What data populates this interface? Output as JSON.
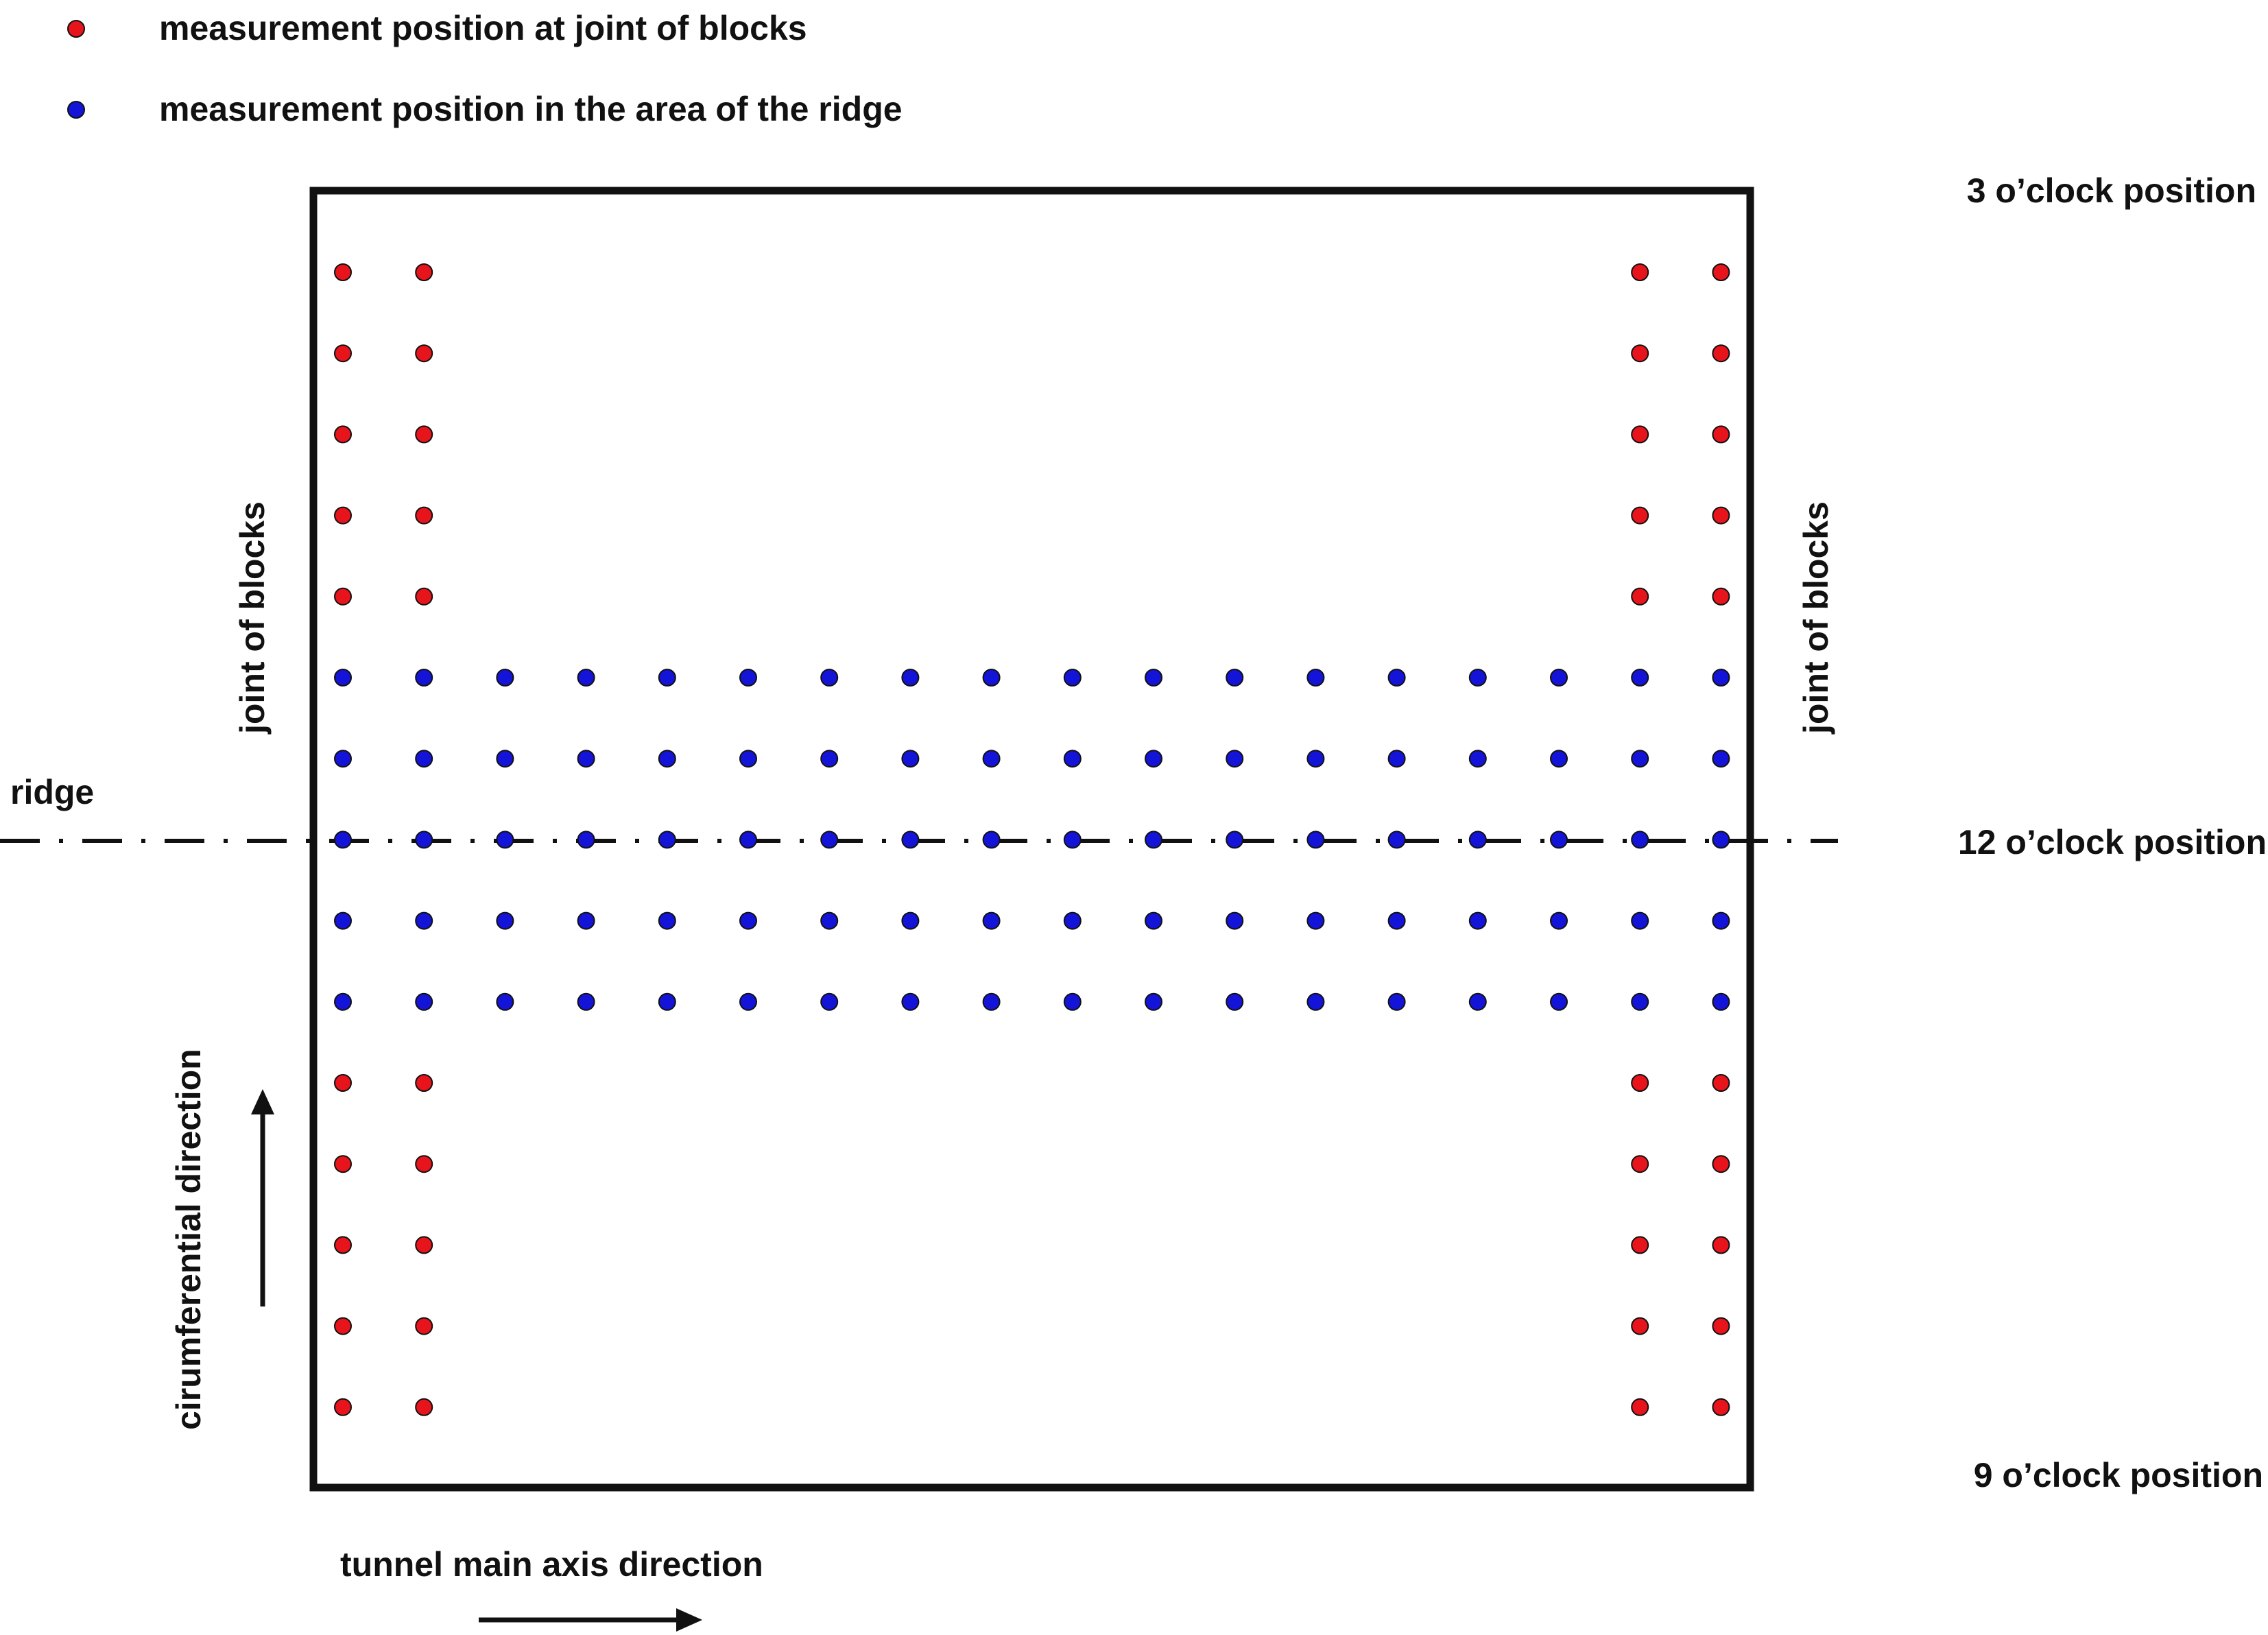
{
  "legend": {
    "joint_label": "measurement position at joint of blocks",
    "ridge_label": "measurement position in the area of the ridge"
  },
  "labels": {
    "pos_3": "3 o’clock position",
    "pos_12": "12 o’clock position",
    "pos_9": "9 o’clock position",
    "ridge": "ridge",
    "joint_left": "joint of blocks",
    "joint_right": "joint of blocks",
    "circumferential": "cirumferential direction",
    "tunnel_axis": "tunnel main axis direction"
  },
  "colors": {
    "joint_point": "#e8141b",
    "ridge_point": "#1414d8",
    "outline": "#111111"
  },
  "grid": {
    "columns": 18,
    "rows": 15,
    "joint_columns": [
      1,
      2,
      17,
      18
    ],
    "ridge_rows": [
      6,
      7,
      8,
      9,
      10
    ],
    "ridge_line_row": 8
  }
}
